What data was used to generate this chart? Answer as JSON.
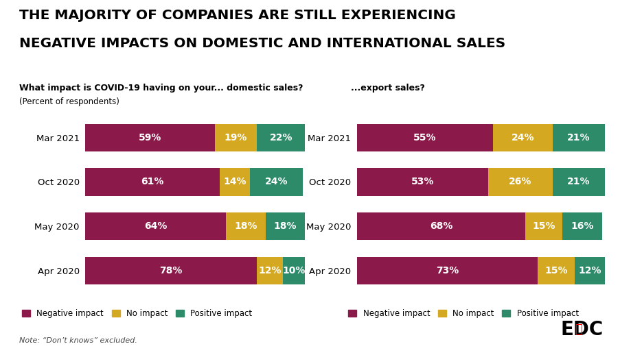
{
  "title_line1": "THE MAJORITY OF COMPANIES ARE STILL EXPERIENCING",
  "title_line2": "NEGATIVE IMPACTS ON DOMESTIC AND INTERNATIONAL SALES",
  "domestic_subtitle": "What impact is COVID-19 having on your... domestic sales?",
  "domestic_subtitle2": "(Percent of respondents)",
  "export_subtitle": "...export sales?",
  "note": "Note: “Don’t knows” excluded.",
  "categories": [
    "Mar 2021",
    "Oct 2020",
    "May 2020",
    "Apr 2020"
  ],
  "domestic": {
    "negative": [
      59,
      61,
      64,
      78
    ],
    "no_impact": [
      19,
      14,
      18,
      12
    ],
    "positive": [
      22,
      24,
      18,
      10
    ]
  },
  "export": {
    "negative": [
      55,
      53,
      68,
      73
    ],
    "no_impact": [
      24,
      26,
      15,
      15
    ],
    "positive": [
      21,
      21,
      16,
      12
    ]
  },
  "colors": {
    "negative": "#8B1A4A",
    "no_impact": "#D4A820",
    "positive": "#2E8B6A"
  },
  "legend_labels": [
    "Negative impact",
    "No impact",
    "Positive impact"
  ],
  "bar_height": 0.62,
  "background_color": "#FFFFFF"
}
